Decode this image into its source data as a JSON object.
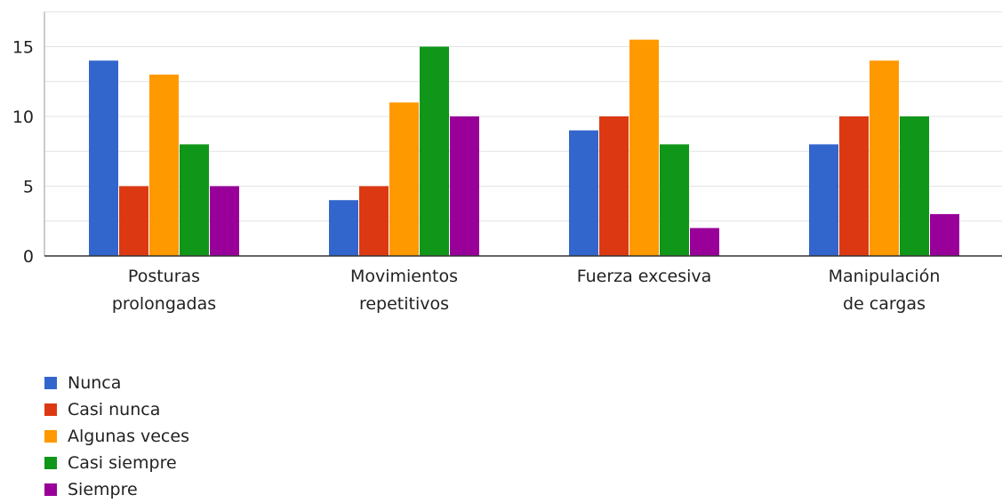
{
  "chart_data": {
    "type": "bar",
    "title": "",
    "xlabel": "",
    "ylabel": "",
    "ylim": [
      0,
      17.5
    ],
    "yticks": [
      0,
      5,
      10,
      15
    ],
    "grid": true,
    "legend_position": "bottom-left",
    "categories": [
      [
        "Posturas",
        "prolongadas"
      ],
      [
        "Movimientos",
        "repetitivos"
      ],
      [
        "Fuerza excesiva"
      ],
      [
        "Manipulación",
        "de cargas"
      ]
    ],
    "series": [
      {
        "name": "Nunca",
        "color": "#3366cc",
        "values": [
          14,
          4,
          9,
          8
        ]
      },
      {
        "name": "Casi nunca",
        "color": "#dc3912",
        "values": [
          5,
          5,
          10,
          10
        ]
      },
      {
        "name": "Algunas veces",
        "color": "#ff9900",
        "values": [
          13,
          11,
          15.5,
          14
        ]
      },
      {
        "name": "Casi siempre",
        "color": "#109618",
        "values": [
          8,
          15,
          8,
          10
        ]
      },
      {
        "name": "Siempre",
        "color": "#990099",
        "values": [
          5,
          10,
          2,
          3
        ]
      }
    ]
  }
}
